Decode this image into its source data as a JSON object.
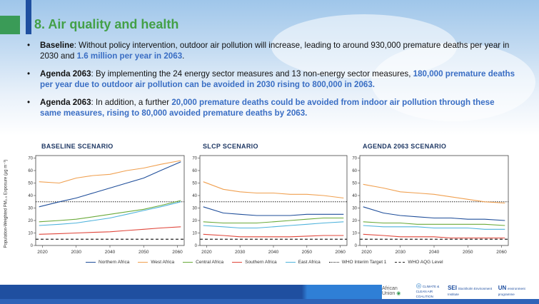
{
  "slide": {
    "title": "8. Air quality and health",
    "bullets": [
      {
        "lead": "Baseline",
        "text": ": Without policy intervention, outdoor air pollution will increase, leading to around 930,000 premature deaths per year in 2030 and ",
        "highlight": "1.6 million per year in 2063",
        "tail": "."
      },
      {
        "lead": "Agenda 2063",
        "text": ": By implementing the 24 energy sector measures and 13 non-energy sector measures, ",
        "highlight": "180,000 premature deaths per year due to outdoor air pollution can be avoided in 2030 rising to 800,000 in 2063.",
        "tail": ""
      },
      {
        "lead": "Agenda 2063",
        "text": ": In addition, a further ",
        "highlight": "20,000 premature deaths could be avoided from indoor air pollution through these same measures, rising to 80,000 avoided premature deaths by 2063.",
        "tail": ""
      }
    ]
  },
  "figure": {
    "ylabel": "Population-Weighted PM₂.₅ Exposure (μg m⁻³)",
    "legend": [
      {
        "label": "Northern Africa",
        "color": "#1f4e9a",
        "dash": false
      },
      {
        "label": "West Africa",
        "color": "#f0a050",
        "dash": false
      },
      {
        "label": "Central Africa",
        "color": "#6aaa3a",
        "dash": false
      },
      {
        "label": "Southern Africa",
        "color": "#e0453a",
        "dash": false
      },
      {
        "label": "East Africa",
        "color": "#4fb3dc",
        "dash": false
      },
      {
        "label": "WHO Interim Target 1",
        "color": "#222222",
        "dash": true
      },
      {
        "label": "WHO AQG Level",
        "color": "#222222",
        "dash": true
      }
    ]
  },
  "chart_data": [
    {
      "type": "line",
      "title": "BASELINE SCENARIO",
      "x": [
        2019,
        2025,
        2030,
        2035,
        2040,
        2045,
        2050,
        2055,
        2061
      ],
      "xticks": [
        2020,
        2030,
        2040,
        2050,
        2060
      ],
      "ylim": [
        0,
        72
      ],
      "yticks": [
        0,
        10,
        20,
        30,
        40,
        50,
        60,
        70
      ],
      "series": [
        {
          "name": "Northern Africa",
          "values": [
            31,
            35,
            38,
            42,
            46,
            50,
            54,
            60,
            67
          ]
        },
        {
          "name": "West Africa",
          "values": [
            51,
            50,
            54,
            56,
            57,
            60,
            62,
            65,
            68
          ]
        },
        {
          "name": "Central Africa",
          "values": [
            19,
            20,
            21,
            23,
            25,
            27,
            29,
            32,
            36
          ]
        },
        {
          "name": "Southern Africa",
          "values": [
            9,
            9.5,
            10,
            10.5,
            11,
            12,
            13,
            14,
            15
          ]
        },
        {
          "name": "East Africa",
          "values": [
            16,
            17,
            18,
            20,
            22,
            25,
            28,
            31,
            35
          ]
        }
      ],
      "reference_lines": [
        {
          "name": "WHO Interim Target 1",
          "value": 35
        },
        {
          "name": "WHO AQG Level",
          "value": 5
        }
      ]
    },
    {
      "type": "line",
      "title": "SLCP SCENARIO",
      "x": [
        2019,
        2025,
        2030,
        2035,
        2040,
        2045,
        2050,
        2055,
        2061
      ],
      "xticks": [
        2020,
        2030,
        2040,
        2050,
        2060
      ],
      "ylim": [
        0,
        72
      ],
      "yticks": [
        0,
        10,
        20,
        30,
        40,
        50,
        60,
        70
      ],
      "series": [
        {
          "name": "Northern Africa",
          "values": [
            31,
            26,
            25,
            24,
            24,
            24,
            25,
            25,
            25
          ]
        },
        {
          "name": "West Africa",
          "values": [
            51,
            45,
            43,
            42,
            42,
            41,
            41,
            40,
            38
          ]
        },
        {
          "name": "Central Africa",
          "values": [
            19,
            18,
            18,
            18,
            19,
            20,
            21,
            22,
            22
          ]
        },
        {
          "name": "Southern Africa",
          "values": [
            9,
            8,
            7,
            7,
            7,
            7,
            7.5,
            8,
            8
          ]
        },
        {
          "name": "East Africa",
          "values": [
            16,
            15,
            14,
            14,
            15,
            16,
            17,
            18,
            19
          ]
        }
      ],
      "reference_lines": [
        {
          "name": "WHO Interim Target 1",
          "value": 35
        },
        {
          "name": "WHO AQG Level",
          "value": 5
        }
      ]
    },
    {
      "type": "line",
      "title": "AGENDA 2063 SCENARIO",
      "x": [
        2019,
        2025,
        2030,
        2035,
        2040,
        2045,
        2050,
        2055,
        2061
      ],
      "xticks": [
        2020,
        2030,
        2040,
        2050,
        2060
      ],
      "ylim": [
        0,
        72
      ],
      "yticks": [
        0,
        10,
        20,
        30,
        40,
        50,
        60,
        70
      ],
      "series": [
        {
          "name": "Northern Africa",
          "values": [
            31,
            26,
            24,
            23,
            22,
            22,
            21,
            21,
            20
          ]
        },
        {
          "name": "West Africa",
          "values": [
            49,
            46,
            43,
            42,
            41,
            39,
            37,
            35,
            34
          ]
        },
        {
          "name": "Central Africa",
          "values": [
            19,
            18,
            18,
            17,
            17,
            17,
            17,
            17,
            16
          ]
        },
        {
          "name": "Southern Africa",
          "values": [
            9,
            8,
            7,
            7,
            7,
            6,
            6,
            6,
            6
          ]
        },
        {
          "name": "East Africa",
          "values": [
            16,
            15,
            15,
            15,
            14,
            14,
            14,
            13,
            13
          ]
        }
      ],
      "reference_lines": [
        {
          "name": "WHO Interim Target 1",
          "value": 35
        },
        {
          "name": "WHO AQG Level",
          "value": 5
        }
      ]
    }
  ],
  "footer": {
    "logos": [
      {
        "name": "African Union",
        "text": "African Union"
      },
      {
        "name": "Climate & Clean Air Coalition",
        "text": "CLIMATE & CLEAN AIR COALITION"
      },
      {
        "name": "SEI",
        "text": "SEI",
        "sub": "Stockholm Environment Institute"
      },
      {
        "name": "UN Environment",
        "text": "UN",
        "sub": "environment programme"
      }
    ]
  }
}
